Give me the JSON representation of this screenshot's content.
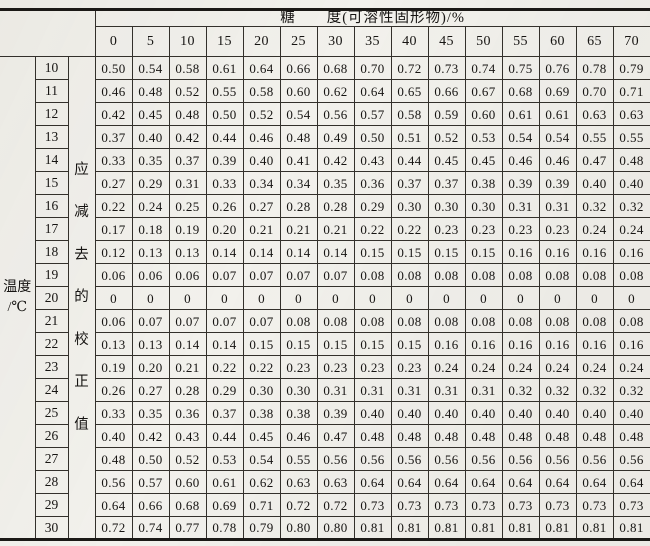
{
  "table": {
    "group_header": "糖　　度(可溶性固形物)/%",
    "col_headers": [
      "0",
      "5",
      "10",
      "15",
      "20",
      "25",
      "30",
      "35",
      "40",
      "45",
      "50",
      "55",
      "60",
      "65",
      "70"
    ],
    "axis_label_line1": "温度",
    "axis_label_line2": "/℃",
    "side_note_chars": [
      "应",
      "减",
      "去",
      "的",
      "校",
      "正",
      "值"
    ],
    "rows": [
      {
        "temp": "10",
        "values": [
          "0.50",
          "0.54",
          "0.58",
          "0.61",
          "0.64",
          "0.66",
          "0.68",
          "0.70",
          "0.72",
          "0.73",
          "0.74",
          "0.75",
          "0.76",
          "0.78",
          "0.79"
        ]
      },
      {
        "temp": "11",
        "values": [
          "0.46",
          "0.48",
          "0.52",
          "0.55",
          "0.58",
          "0.60",
          "0.62",
          "0.64",
          "0.65",
          "0.66",
          "0.67",
          "0.68",
          "0.69",
          "0.70",
          "0.71"
        ]
      },
      {
        "temp": "12",
        "values": [
          "0.42",
          "0.45",
          "0.48",
          "0.50",
          "0.52",
          "0.54",
          "0.56",
          "0.57",
          "0.58",
          "0.59",
          "0.60",
          "0.61",
          "0.61",
          "0.63",
          "0.63"
        ]
      },
      {
        "temp": "13",
        "values": [
          "0.37",
          "0.40",
          "0.42",
          "0.44",
          "0.46",
          "0.48",
          "0.49",
          "0.50",
          "0.51",
          "0.52",
          "0.53",
          "0.54",
          "0.54",
          "0.55",
          "0.55"
        ]
      },
      {
        "temp": "14",
        "values": [
          "0.33",
          "0.35",
          "0.37",
          "0.39",
          "0.40",
          "0.41",
          "0.42",
          "0.43",
          "0.44",
          "0.45",
          "0.45",
          "0.46",
          "0.46",
          "0.47",
          "0.48"
        ]
      },
      {
        "temp": "15",
        "values": [
          "0.27",
          "0.29",
          "0.31",
          "0.33",
          "0.34",
          "0.34",
          "0.35",
          "0.36",
          "0.37",
          "0.37",
          "0.38",
          "0.39",
          "0.39",
          "0.40",
          "0.40"
        ]
      },
      {
        "temp": "16",
        "values": [
          "0.22",
          "0.24",
          "0.25",
          "0.26",
          "0.27",
          "0.28",
          "0.28",
          "0.29",
          "0.30",
          "0.30",
          "0.30",
          "0.31",
          "0.31",
          "0.32",
          "0.32"
        ]
      },
      {
        "temp": "17",
        "values": [
          "0.17",
          "0.18",
          "0.19",
          "0.20",
          "0.21",
          "0.21",
          "0.21",
          "0.22",
          "0.22",
          "0.23",
          "0.23",
          "0.23",
          "0.23",
          "0.24",
          "0.24"
        ]
      },
      {
        "temp": "18",
        "values": [
          "0.12",
          "0.13",
          "0.13",
          "0.14",
          "0.14",
          "0.14",
          "0.14",
          "0.15",
          "0.15",
          "0.15",
          "0.15",
          "0.16",
          "0.16",
          "0.16",
          "0.16"
        ]
      },
      {
        "temp": "19",
        "values": [
          "0.06",
          "0.06",
          "0.06",
          "0.07",
          "0.07",
          "0.07",
          "0.07",
          "0.08",
          "0.08",
          "0.08",
          "0.08",
          "0.08",
          "0.08",
          "0.08",
          "0.08"
        ]
      },
      {
        "temp": "20",
        "values": [
          "0",
          "0",
          "0",
          "0",
          "0",
          "0",
          "0",
          "0",
          "0",
          "0",
          "0",
          "0",
          "0",
          "0",
          "0"
        ]
      },
      {
        "temp": "21",
        "values": [
          "0.06",
          "0.07",
          "0.07",
          "0.07",
          "0.07",
          "0.08",
          "0.08",
          "0.08",
          "0.08",
          "0.08",
          "0.08",
          "0.08",
          "0.08",
          "0.08",
          "0.08"
        ]
      },
      {
        "temp": "22",
        "values": [
          "0.13",
          "0.13",
          "0.14",
          "0.14",
          "0.15",
          "0.15",
          "0.15",
          "0.15",
          "0.15",
          "0.16",
          "0.16",
          "0.16",
          "0.16",
          "0.16",
          "0.16"
        ]
      },
      {
        "temp": "23",
        "values": [
          "0.19",
          "0.20",
          "0.21",
          "0.22",
          "0.22",
          "0.23",
          "0.23",
          "0.23",
          "0.23",
          "0.24",
          "0.24",
          "0.24",
          "0.24",
          "0.24",
          "0.24"
        ]
      },
      {
        "temp": "24",
        "values": [
          "0.26",
          "0.27",
          "0.28",
          "0.29",
          "0.30",
          "0.30",
          "0.31",
          "0.31",
          "0.31",
          "0.31",
          "0.31",
          "0.32",
          "0.32",
          "0.32",
          "0.32"
        ]
      },
      {
        "temp": "25",
        "values": [
          "0.33",
          "0.35",
          "0.36",
          "0.37",
          "0.38",
          "0.38",
          "0.39",
          "0.40",
          "0.40",
          "0.40",
          "0.40",
          "0.40",
          "0.40",
          "0.40",
          "0.40"
        ]
      },
      {
        "temp": "26",
        "values": [
          "0.40",
          "0.42",
          "0.43",
          "0.44",
          "0.45",
          "0.46",
          "0.47",
          "0.48",
          "0.48",
          "0.48",
          "0.48",
          "0.48",
          "0.48",
          "0.48",
          "0.48"
        ]
      },
      {
        "temp": "27",
        "values": [
          "0.48",
          "0.50",
          "0.52",
          "0.53",
          "0.54",
          "0.55",
          "0.56",
          "0.56",
          "0.56",
          "0.56",
          "0.56",
          "0.56",
          "0.56",
          "0.56",
          "0.56"
        ]
      },
      {
        "temp": "28",
        "values": [
          "0.56",
          "0.57",
          "0.60",
          "0.61",
          "0.62",
          "0.63",
          "0.63",
          "0.64",
          "0.64",
          "0.64",
          "0.64",
          "0.64",
          "0.64",
          "0.64",
          "0.64"
        ]
      },
      {
        "temp": "29",
        "values": [
          "0.64",
          "0.66",
          "0.68",
          "0.69",
          "0.71",
          "0.72",
          "0.72",
          "0.73",
          "0.73",
          "0.73",
          "0.73",
          "0.73",
          "0.73",
          "0.73",
          "0.73"
        ]
      },
      {
        "temp": "30",
        "values": [
          "0.72",
          "0.74",
          "0.77",
          "0.78",
          "0.79",
          "0.80",
          "0.80",
          "0.81",
          "0.81",
          "0.81",
          "0.81",
          "0.81",
          "0.81",
          "0.81",
          "0.81"
        ]
      }
    ]
  }
}
